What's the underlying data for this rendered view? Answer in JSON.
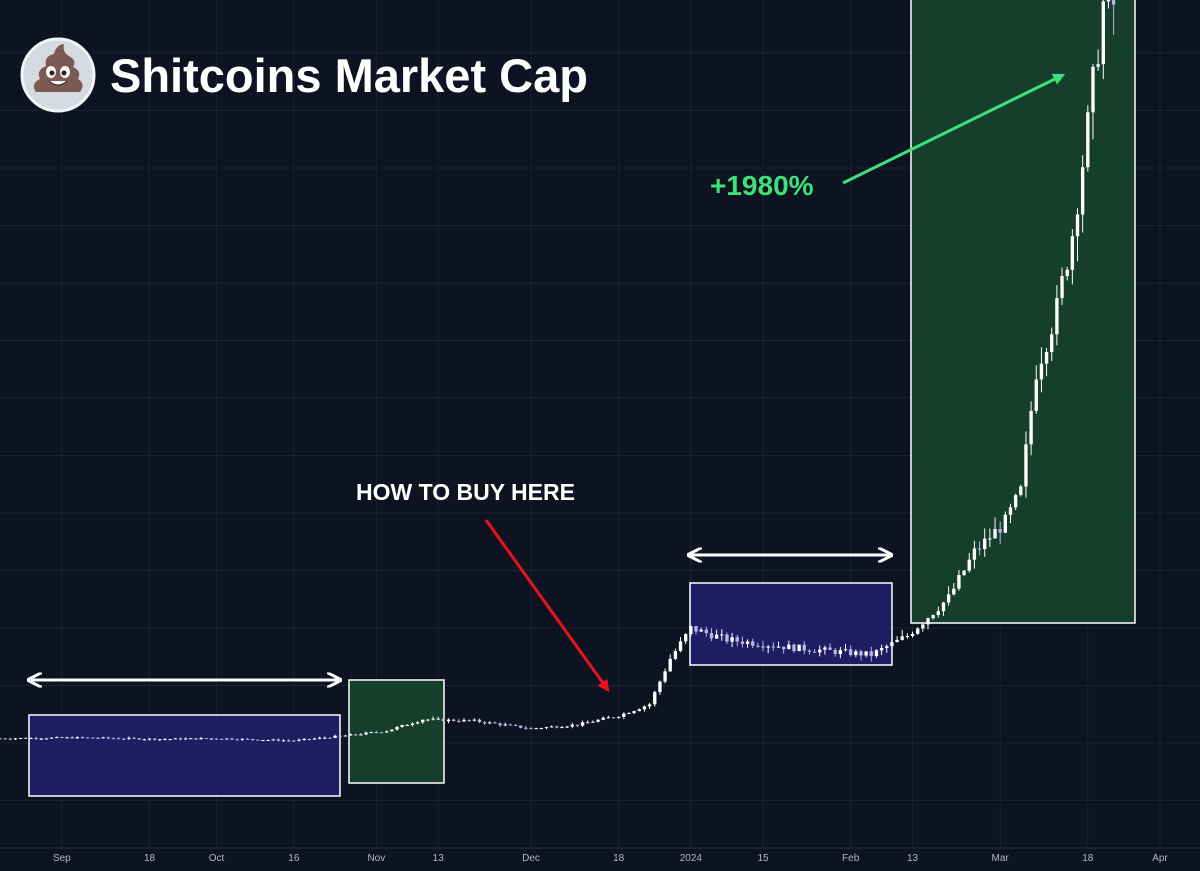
{
  "header": {
    "title": "Shitcoins Market Cap",
    "logo_icon": "poop-emoji-icon"
  },
  "annotations": {
    "buy_label": "HOW TO BUY HERE",
    "gain_label": "+1980%"
  },
  "colors": {
    "background": "#0d1320",
    "grid": "#1b2230",
    "candle_up": "#ffffff",
    "candle_down": "#b9b5e6",
    "consolidation_fill": "#231f74",
    "breakout_fill": "#17462f",
    "gain_text": "#3ee07a",
    "buy_arrow": "#e8141b",
    "axis_text": "#b4b8c2"
  },
  "chart_data": {
    "type": "candlestick",
    "title": "Shitcoins Market Cap",
    "xlabel": "",
    "ylabel": "",
    "x_range": [
      "2023-08-20",
      "2024-04-01"
    ],
    "y_axis": "unlabeled, relative scale",
    "ylim": [
      0,
      100
    ],
    "x_ticks": [
      {
        "date": "2023-09-01",
        "label": "Sep"
      },
      {
        "date": "2023-09-18",
        "label": "18"
      },
      {
        "date": "2023-10-01",
        "label": "Oct"
      },
      {
        "date": "2023-10-16",
        "label": "16"
      },
      {
        "date": "2023-11-01",
        "label": "Nov"
      },
      {
        "date": "2023-11-13",
        "label": "13"
      },
      {
        "date": "2023-12-01",
        "label": "Dec"
      },
      {
        "date": "2023-12-18",
        "label": "18"
      },
      {
        "date": "2024-01-01",
        "label": "2024"
      },
      {
        "date": "2024-01-15",
        "label": "15"
      },
      {
        "date": "2024-02-01",
        "label": "Feb"
      },
      {
        "date": "2024-02-13",
        "label": "13"
      },
      {
        "date": "2024-03-01",
        "label": "Mar"
      },
      {
        "date": "2024-03-18",
        "label": "18"
      },
      {
        "date": "2024-04-01",
        "label": "Apr"
      }
    ],
    "grid": true,
    "series": [
      {
        "close_waypoints": [
          {
            "date": "2023-08-20",
            "value": 3.5
          },
          {
            "date": "2023-09-05",
            "value": 3.6
          },
          {
            "date": "2023-09-20",
            "value": 3.4
          },
          {
            "date": "2023-10-01",
            "value": 3.5
          },
          {
            "date": "2023-10-16",
            "value": 3.2
          },
          {
            "date": "2023-10-28",
            "value": 4.0
          },
          {
            "date": "2023-11-03",
            "value": 4.5
          },
          {
            "date": "2023-11-10",
            "value": 6.0
          },
          {
            "date": "2023-11-20",
            "value": 5.8
          },
          {
            "date": "2023-12-01",
            "value": 4.8
          },
          {
            "date": "2023-12-10",
            "value": 5.3
          },
          {
            "date": "2023-12-18",
            "value": 6.5
          },
          {
            "date": "2023-12-24",
            "value": 8.0
          },
          {
            "date": "2023-12-28",
            "value": 14.0
          },
          {
            "date": "2024-01-01",
            "value": 18.0
          },
          {
            "date": "2024-01-08",
            "value": 16.5
          },
          {
            "date": "2024-01-20",
            "value": 15.5
          },
          {
            "date": "2024-02-05",
            "value": 14.5
          },
          {
            "date": "2024-02-12",
            "value": 17.0
          },
          {
            "date": "2024-02-20",
            "value": 22.0
          },
          {
            "date": "2024-02-25",
            "value": 28.0
          },
          {
            "date": "2024-03-02",
            "value": 32.0
          },
          {
            "date": "2024-03-05",
            "value": 36.0
          },
          {
            "date": "2024-03-08",
            "value": 52.0
          },
          {
            "date": "2024-03-12",
            "value": 60.0
          },
          {
            "date": "2024-03-15",
            "value": 70.0
          },
          {
            "date": "2024-03-18",
            "value": 84.0
          },
          {
            "date": "2024-03-21",
            "value": 100.0
          },
          {
            "date": "2024-03-23",
            "value": 100.0
          }
        ]
      }
    ]
  }
}
